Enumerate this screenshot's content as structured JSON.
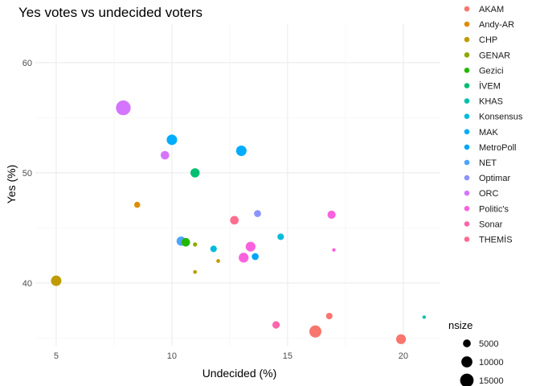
{
  "chart_data": {
    "type": "scatter",
    "title": "Yes votes vs undecided voters",
    "xlabel": "Undecided (%)",
    "ylabel": "Yes (%)",
    "xlim": [
      4.1,
      21.6
    ],
    "ylim": [
      34.3,
      63.5
    ],
    "x_ticks": [
      5,
      10,
      15,
      20
    ],
    "y_ticks": [
      40,
      50,
      60
    ],
    "grid": true,
    "legend": {
      "placement": "right",
      "color_title": "",
      "size_title": "nsize",
      "size_breaks": [
        5000,
        10000,
        15000
      ]
    },
    "series": [
      {
        "name": "AKAM",
        "color": "#F8766D",
        "points": [
          {
            "x": 16.2,
            "y": 35.6,
            "size": 12000
          },
          {
            "x": 16.8,
            "y": 37.0,
            "size": 3500
          },
          {
            "x": 19.9,
            "y": 34.9,
            "size": 8000
          }
        ]
      },
      {
        "name": "Andy-AR",
        "color": "#E18A00",
        "points": [
          {
            "x": 8.5,
            "y": 47.1,
            "size": 3000
          }
        ]
      },
      {
        "name": "CHP",
        "color": "#BE9C00",
        "points": [
          {
            "x": 5.0,
            "y": 40.2,
            "size": 9000
          },
          {
            "x": 11.0,
            "y": 41.0,
            "size": 1200
          },
          {
            "x": 12.0,
            "y": 42.0,
            "size": 1200
          }
        ]
      },
      {
        "name": "GENAR",
        "color": "#8CAB00",
        "points": [
          {
            "x": 11.0,
            "y": 43.5,
            "size": 1500
          }
        ]
      },
      {
        "name": "Gezici",
        "color": "#24B700",
        "points": [
          {
            "x": 10.6,
            "y": 43.7,
            "size": 6000
          }
        ]
      },
      {
        "name": "İVEM",
        "color": "#00BE70",
        "points": [
          {
            "x": 11.0,
            "y": 50.0,
            "size": 7000
          }
        ]
      },
      {
        "name": "KHAS",
        "color": "#00C1AB",
        "points": [
          {
            "x": 20.9,
            "y": 36.9,
            "size": 1000
          }
        ]
      },
      {
        "name": "Konsensus",
        "color": "#00BBDA",
        "points": [
          {
            "x": 14.7,
            "y": 44.2,
            "size": 3500
          },
          {
            "x": 11.8,
            "y": 43.1,
            "size": 3500
          }
        ]
      },
      {
        "name": "MAK",
        "color": "#00ACFC",
        "points": [
          {
            "x": 10.0,
            "y": 53.0,
            "size": 9000
          },
          {
            "x": 13.0,
            "y": 52.0,
            "size": 9000
          }
        ]
      },
      {
        "name": "MetroPoll",
        "color": "#00A5FF",
        "points": [
          {
            "x": 13.6,
            "y": 42.4,
            "size": 4000
          }
        ]
      },
      {
        "name": "NET",
        "color": "#4DA4FF",
        "points": [
          {
            "x": 10.4,
            "y": 43.8,
            "size": 7000
          }
        ]
      },
      {
        "name": "Optimar",
        "color": "#8B93FF",
        "points": [
          {
            "x": 13.7,
            "y": 46.3,
            "size": 4000
          }
        ]
      },
      {
        "name": "ORC",
        "color": "#D575FE",
        "points": [
          {
            "x": 7.9,
            "y": 55.9,
            "size": 18000
          },
          {
            "x": 9.7,
            "y": 51.6,
            "size": 6000
          }
        ]
      },
      {
        "name": "Politic's",
        "color": "#F962DD",
        "points": [
          {
            "x": 13.4,
            "y": 43.3,
            "size": 8000
          },
          {
            "x": 13.1,
            "y": 42.3,
            "size": 8000
          },
          {
            "x": 16.9,
            "y": 46.2,
            "size": 5500
          },
          {
            "x": 17.0,
            "y": 43.0,
            "size": 1000
          }
        ]
      },
      {
        "name": "Sonar",
        "color": "#FF65AC",
        "points": [
          {
            "x": 14.5,
            "y": 36.2,
            "size": 4500
          }
        ]
      },
      {
        "name": "THEMİS",
        "color": "#FF6C91",
        "points": [
          {
            "x": 12.7,
            "y": 45.7,
            "size": 6000
          }
        ]
      }
    ]
  }
}
